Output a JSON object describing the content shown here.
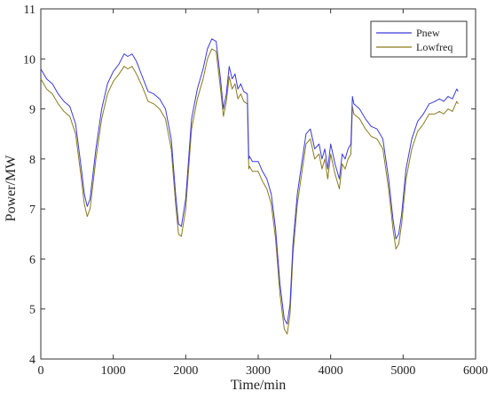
{
  "chart_data": {
    "type": "line",
    "title": "",
    "xlabel": "Time/min",
    "ylabel": "Power/MW",
    "xlim": [
      0,
      6000
    ],
    "ylim": [
      4,
      11
    ],
    "xticks": [
      0,
      1000,
      2000,
      3000,
      4000,
      5000,
      6000
    ],
    "yticks": [
      4,
      5,
      6,
      7,
      8,
      9,
      10,
      11
    ],
    "grid": false,
    "legend_position": "top-right",
    "series": [
      {
        "name": "Pnew",
        "color": "#3b3bd9",
        "x": [
          0,
          80,
          160,
          240,
          320,
          400,
          480,
          560,
          600,
          640,
          680,
          760,
          840,
          920,
          1000,
          1080,
          1150,
          1200,
          1260,
          1320,
          1400,
          1480,
          1560,
          1640,
          1720,
          1800,
          1860,
          1900,
          1940,
          2000,
          2080,
          2160,
          2240,
          2300,
          2360,
          2420,
          2480,
          2520,
          2560,
          2600,
          2640,
          2680,
          2720,
          2760,
          2800,
          2850,
          2870,
          2880,
          2920,
          3000,
          3060,
          3120,
          3180,
          3240,
          3300,
          3360,
          3400,
          3440,
          3480,
          3540,
          3600,
          3660,
          3720,
          3780,
          3840,
          3880,
          3920,
          3960,
          4000,
          4060,
          4120,
          4160,
          4200,
          4240,
          4280,
          4300,
          4320,
          4400,
          4480,
          4560,
          4640,
          4720,
          4800,
          4860,
          4900,
          4940,
          4980,
          5040,
          5120,
          5200,
          5280,
          5360,
          5440,
          5500,
          5560,
          5620,
          5680,
          5740,
          5760
        ],
        "y": [
          9.8,
          9.6,
          9.5,
          9.3,
          9.15,
          9.05,
          8.7,
          7.8,
          7.3,
          7.05,
          7.2,
          8.2,
          9.0,
          9.5,
          9.75,
          9.9,
          10.1,
          10.05,
          10.1,
          9.95,
          9.65,
          9.35,
          9.3,
          9.2,
          9.0,
          8.4,
          7.3,
          6.7,
          6.65,
          7.2,
          8.8,
          9.4,
          9.8,
          10.2,
          10.4,
          10.35,
          9.6,
          9.0,
          9.3,
          9.85,
          9.6,
          9.7,
          9.4,
          9.5,
          9.35,
          9.3,
          8.0,
          8.05,
          7.95,
          7.95,
          7.75,
          7.6,
          7.3,
          6.6,
          5.5,
          4.8,
          4.7,
          5.1,
          6.3,
          7.3,
          7.9,
          8.5,
          8.6,
          8.2,
          8.3,
          8.0,
          8.2,
          7.8,
          8.3,
          7.9,
          7.6,
          8.1,
          8.0,
          8.2,
          8.3,
          9.25,
          9.1,
          9.0,
          8.8,
          8.65,
          8.6,
          8.4,
          7.6,
          6.8,
          6.4,
          6.5,
          6.9,
          7.8,
          8.4,
          8.75,
          8.9,
          9.1,
          9.15,
          9.2,
          9.15,
          9.25,
          9.2,
          9.4,
          9.35
        ]
      },
      {
        "name": "Lowfreq",
        "color": "#8a7a1e",
        "x": [
          0,
          80,
          160,
          240,
          320,
          400,
          480,
          560,
          600,
          640,
          680,
          760,
          840,
          920,
          1000,
          1080,
          1150,
          1200,
          1260,
          1320,
          1400,
          1480,
          1560,
          1640,
          1720,
          1800,
          1860,
          1900,
          1940,
          2000,
          2080,
          2160,
          2240,
          2300,
          2360,
          2420,
          2480,
          2520,
          2560,
          2600,
          2640,
          2680,
          2720,
          2760,
          2800,
          2850,
          2870,
          2880,
          2920,
          3000,
          3060,
          3120,
          3180,
          3240,
          3300,
          3360,
          3400,
          3440,
          3480,
          3540,
          3600,
          3660,
          3720,
          3780,
          3840,
          3880,
          3920,
          3960,
          4000,
          4060,
          4120,
          4160,
          4200,
          4240,
          4280,
          4300,
          4320,
          4400,
          4480,
          4560,
          4640,
          4720,
          4800,
          4860,
          4900,
          4940,
          4980,
          5040,
          5120,
          5200,
          5280,
          5360,
          5440,
          5500,
          5560,
          5620,
          5680,
          5740,
          5760
        ],
        "y": [
          9.6,
          9.4,
          9.3,
          9.1,
          8.95,
          8.85,
          8.5,
          7.6,
          7.1,
          6.85,
          7.0,
          8.0,
          8.8,
          9.3,
          9.55,
          9.7,
          9.85,
          9.8,
          9.85,
          9.7,
          9.45,
          9.15,
          9.1,
          9.0,
          8.8,
          8.2,
          7.1,
          6.5,
          6.45,
          7.0,
          8.6,
          9.2,
          9.6,
          10.0,
          10.2,
          10.15,
          9.4,
          8.85,
          9.15,
          9.65,
          9.4,
          9.5,
          9.2,
          9.3,
          9.15,
          9.1,
          7.8,
          7.85,
          7.75,
          7.75,
          7.55,
          7.4,
          7.1,
          6.4,
          5.3,
          4.6,
          4.5,
          4.9,
          6.1,
          7.1,
          7.7,
          8.3,
          8.4,
          8.0,
          8.1,
          7.8,
          8.0,
          7.6,
          8.1,
          7.7,
          7.4,
          7.9,
          7.8,
          8.0,
          8.1,
          9.05,
          8.9,
          8.8,
          8.6,
          8.45,
          8.4,
          8.2,
          7.4,
          6.6,
          6.2,
          6.3,
          6.7,
          7.6,
          8.2,
          8.55,
          8.7,
          8.9,
          8.9,
          8.95,
          8.9,
          9.0,
          8.95,
          9.15,
          9.1
        ]
      }
    ]
  }
}
